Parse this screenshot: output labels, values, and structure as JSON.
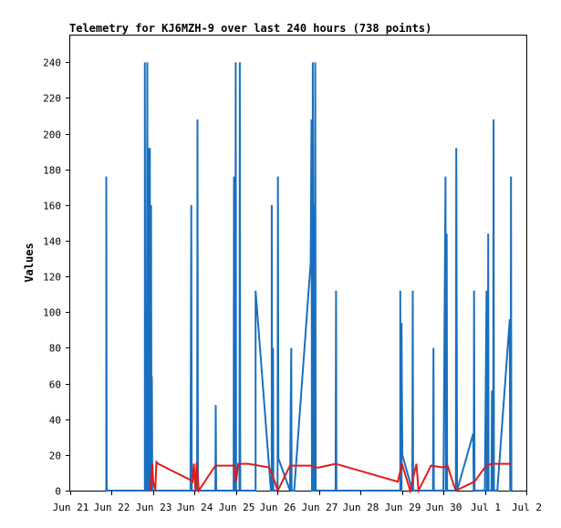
{
  "chart_data": {
    "type": "line",
    "title": "Telemetry for KJ6MZH-9 over last 240 hours (738 points)",
    "xlabel": "",
    "ylabel": "Values",
    "ylim": [
      0,
      255
    ],
    "xlim": [
      0,
      11
    ],
    "yticks": [
      0,
      20,
      40,
      60,
      80,
      100,
      120,
      140,
      160,
      180,
      200,
      220,
      240
    ],
    "xticks": [
      {
        "x": 0,
        "label": "Jun 21"
      },
      {
        "x": 1,
        "label": "Jun 22"
      },
      {
        "x": 2,
        "label": "Jun 23"
      },
      {
        "x": 3,
        "label": "Jun 24"
      },
      {
        "x": 4,
        "label": "Jun 25"
      },
      {
        "x": 5,
        "label": "Jun 26"
      },
      {
        "x": 6,
        "label": "Jun 27"
      },
      {
        "x": 7,
        "label": "Jun 28"
      },
      {
        "x": 8,
        "label": "Jun 29"
      },
      {
        "x": 9,
        "label": "Jun 30"
      },
      {
        "x": 10,
        "label": "Jul 1"
      },
      {
        "x": 11,
        "label": "Jul 2"
      }
    ],
    "grid": false,
    "colors": {
      "blue": "#1a6fbf",
      "red": "#e01b1b"
    },
    "series": [
      {
        "color": "#1a6fbf",
        "points": [
          [
            0.87,
            0
          ],
          [
            0.87,
            176
          ],
          [
            0.88,
            0
          ],
          [
            1.8,
            0
          ],
          [
            1.8,
            240
          ],
          [
            1.81,
            0
          ],
          [
            1.85,
            0
          ],
          [
            1.85,
            96
          ],
          [
            1.86,
            240
          ],
          [
            1.87,
            0
          ],
          [
            1.88,
            0
          ],
          [
            1.89,
            192
          ],
          [
            1.9,
            0
          ],
          [
            1.91,
            0
          ],
          [
            1.92,
            192
          ],
          [
            1.93,
            0
          ],
          [
            1.94,
            0
          ],
          [
            1.95,
            160
          ],
          [
            1.96,
            0
          ],
          [
            1.97,
            0
          ],
          [
            1.97,
            64
          ],
          [
            1.98,
            0
          ],
          [
            2.0,
            0
          ],
          [
            2.9,
            0
          ],
          [
            2.92,
            160
          ],
          [
            2.93,
            0
          ],
          [
            3.06,
            0
          ],
          [
            3.07,
            208
          ],
          [
            3.08,
            0
          ],
          [
            3.1,
            0
          ],
          [
            3.5,
            0
          ],
          [
            3.51,
            48
          ],
          [
            3.52,
            0
          ],
          [
            3.6,
            0
          ],
          [
            3.94,
            0
          ],
          [
            3.95,
            176
          ],
          [
            3.96,
            0
          ],
          [
            3.98,
            0
          ],
          [
            3.99,
            240
          ],
          [
            4.0,
            0
          ],
          [
            4.08,
            0
          ],
          [
            4.09,
            240
          ],
          [
            4.1,
            0
          ],
          [
            4.3,
            0
          ],
          [
            4.47,
            0
          ],
          [
            4.47,
            112
          ],
          [
            4.84,
            0
          ],
          [
            4.86,
            0
          ],
          [
            4.86,
            160
          ],
          [
            4.87,
            0
          ],
          [
            4.89,
            0
          ],
          [
            4.89,
            80
          ],
          [
            4.9,
            0
          ],
          [
            4.95,
            0
          ],
          [
            5.0,
            0
          ],
          [
            5.01,
            176
          ],
          [
            5.02,
            18
          ],
          [
            5.3,
            0
          ],
          [
            5.33,
            80
          ],
          [
            5.34,
            0
          ],
          [
            5.4,
            0
          ],
          [
            5.8,
            128
          ],
          [
            5.82,
            208
          ],
          [
            5.83,
            0
          ],
          [
            5.84,
            0
          ],
          [
            5.85,
            240
          ],
          [
            5.86,
            128
          ],
          [
            5.87,
            160
          ],
          [
            5.88,
            0
          ],
          [
            5.9,
            0
          ],
          [
            5.91,
            240
          ],
          [
            5.92,
            0
          ],
          [
            6.4,
            0
          ],
          [
            6.41,
            112
          ],
          [
            6.42,
            0
          ],
          [
            7.2,
            0
          ],
          [
            7.96,
            0
          ],
          [
            7.96,
            112
          ],
          [
            7.97,
            0
          ],
          [
            7.99,
            0
          ],
          [
            7.99,
            94
          ],
          [
            8.0,
            56
          ],
          [
            8.01,
            20
          ],
          [
            8.25,
            0
          ],
          [
            8.26,
            112
          ],
          [
            8.27,
            0
          ],
          [
            8.4,
            0
          ],
          [
            8.75,
            0
          ],
          [
            8.76,
            80
          ],
          [
            8.77,
            0
          ],
          [
            9.0,
            0
          ],
          [
            9.0,
            0
          ],
          [
            9.05,
            176
          ],
          [
            9.06,
            0
          ],
          [
            9.07,
            0
          ],
          [
            9.08,
            144
          ],
          [
            9.09,
            0
          ],
          [
            9.3,
            0
          ],
          [
            9.31,
            192
          ],
          [
            9.33,
            0
          ],
          [
            9.72,
            32
          ],
          [
            9.73,
            0
          ],
          [
            9.74,
            112
          ],
          [
            9.75,
            0
          ],
          [
            10.0,
            0
          ],
          [
            10.04,
            112
          ],
          [
            10.05,
            0
          ],
          [
            10.07,
            0
          ],
          [
            10.08,
            144
          ],
          [
            10.09,
            0
          ],
          [
            10.16,
            0
          ],
          [
            10.17,
            56
          ],
          [
            10.18,
            0
          ],
          [
            10.2,
            0
          ],
          [
            10.21,
            208
          ],
          [
            10.22,
            0
          ],
          [
            10.3,
            0
          ],
          [
            10.6,
            96
          ],
          [
            10.61,
            0
          ],
          [
            10.62,
            0
          ],
          [
            10.63,
            176
          ],
          [
            10.64,
            0
          ]
        ]
      },
      {
        "color": "#e01b1b",
        "points": [
          [
            1.93,
            0
          ],
          [
            1.98,
            15
          ],
          [
            2.0,
            5
          ],
          [
            2.05,
            0
          ],
          [
            2.08,
            16
          ],
          [
            2.12,
            15
          ],
          [
            2.9,
            6
          ],
          [
            2.95,
            5
          ],
          [
            2.98,
            15
          ],
          [
            3.02,
            0
          ],
          [
            3.05,
            16
          ],
          [
            3.1,
            0
          ],
          [
            3.5,
            14
          ],
          [
            3.95,
            14
          ],
          [
            4.0,
            5
          ],
          [
            4.05,
            15
          ],
          [
            4.3,
            15
          ],
          [
            4.8,
            13
          ],
          [
            4.95,
            4
          ],
          [
            5.0,
            0
          ],
          [
            5.05,
            2
          ],
          [
            5.3,
            14
          ],
          [
            5.85,
            14
          ],
          [
            5.9,
            13
          ],
          [
            6.0,
            13
          ],
          [
            6.4,
            15
          ],
          [
            7.9,
            5
          ],
          [
            8.0,
            15
          ],
          [
            8.2,
            0
          ],
          [
            8.35,
            15
          ],
          [
            8.4,
            0
          ],
          [
            8.7,
            14
          ],
          [
            9.0,
            13
          ],
          [
            9.1,
            14
          ],
          [
            9.25,
            3
          ],
          [
            9.3,
            0
          ],
          [
            9.75,
            5
          ],
          [
            10.0,
            13
          ],
          [
            10.15,
            15
          ],
          [
            10.62,
            15
          ]
        ]
      }
    ]
  }
}
